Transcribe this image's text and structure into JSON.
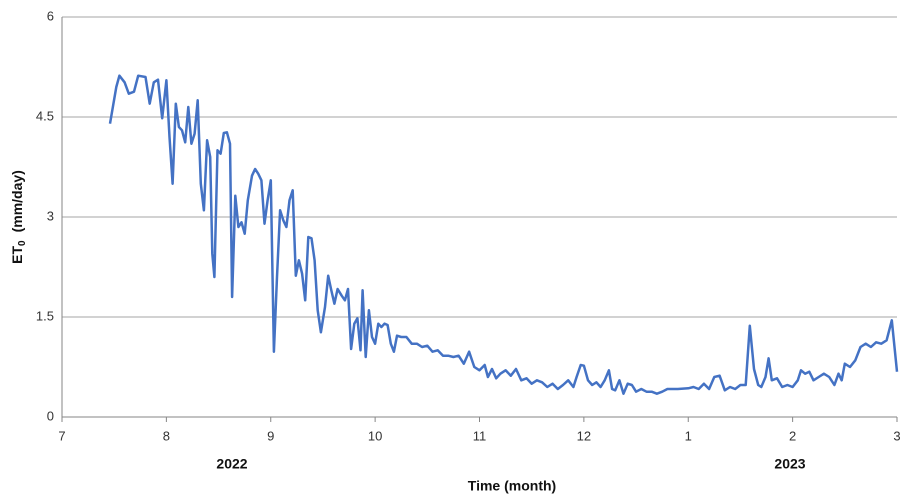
{
  "chart_data": {
    "type": "line",
    "x_label": "Time  (month)",
    "y_label": {
      "main": "ET",
      "subscript": "0",
      "unit": "(mm/day)"
    },
    "group_labels": [
      "2022",
      "2023"
    ],
    "color": "#4472c4",
    "grid": true,
    "xlim": [
      7,
      15
    ],
    "xticks": [
      7,
      8,
      9,
      10,
      11,
      12,
      {
        "value": 13,
        "label": "1"
      },
      {
        "value": 14,
        "label": "2"
      },
      {
        "value": 15,
        "label": "3"
      }
    ],
    "ylim": [
      0,
      6
    ],
    "yticks": [
      0,
      1.5,
      3,
      4.5,
      6
    ],
    "x": [
      7.46,
      7.52,
      7.55,
      7.6,
      7.64,
      7.69,
      7.73,
      7.8,
      7.84,
      7.88,
      7.92,
      7.96,
      8.0,
      8.03,
      8.06,
      8.09,
      8.12,
      8.15,
      8.18,
      8.21,
      8.24,
      8.27,
      8.3,
      8.33,
      8.36,
      8.39,
      8.42,
      8.44,
      8.46,
      8.49,
      8.52,
      8.55,
      8.58,
      8.61,
      8.63,
      8.66,
      8.69,
      8.72,
      8.75,
      8.78,
      8.82,
      8.85,
      8.88,
      8.91,
      8.94,
      8.97,
      9.0,
      9.03,
      9.06,
      9.09,
      9.12,
      9.15,
      9.18,
      9.21,
      9.24,
      9.27,
      9.3,
      9.33,
      9.36,
      9.39,
      9.42,
      9.45,
      9.48,
      9.52,
      9.55,
      9.58,
      9.61,
      9.64,
      9.68,
      9.71,
      9.74,
      9.77,
      9.8,
      9.83,
      9.86,
      9.88,
      9.91,
      9.94,
      9.97,
      10.0,
      10.03,
      10.06,
      10.09,
      10.12,
      10.15,
      10.18,
      10.21,
      10.25,
      10.3,
      10.35,
      10.4,
      10.45,
      10.5,
      10.55,
      10.6,
      10.65,
      10.7,
      10.75,
      10.8,
      10.85,
      10.9,
      10.95,
      11.0,
      11.05,
      11.08,
      11.12,
      11.16,
      11.2,
      11.25,
      11.3,
      11.35,
      11.4,
      11.45,
      11.5,
      11.55,
      11.6,
      11.65,
      11.7,
      11.75,
      11.8,
      11.85,
      11.9,
      11.93,
      11.97,
      12.0,
      12.04,
      12.08,
      12.12,
      12.16,
      12.2,
      12.24,
      12.27,
      12.3,
      12.34,
      12.38,
      12.42,
      12.46,
      12.5,
      12.55,
      12.6,
      12.65,
      12.7,
      12.75,
      12.8,
      12.9,
      13.0,
      13.05,
      13.1,
      13.15,
      13.2,
      13.25,
      13.3,
      13.35,
      13.4,
      13.45,
      13.5,
      13.55,
      13.59,
      13.63,
      13.67,
      13.7,
      13.74,
      13.77,
      13.8,
      13.85,
      13.9,
      13.95,
      14.0,
      14.05,
      14.08,
      14.12,
      14.16,
      14.2,
      14.25,
      14.3,
      14.35,
      14.4,
      14.44,
      14.47,
      14.5,
      14.55,
      14.6,
      14.65,
      14.7,
      14.75,
      14.8,
      14.85,
      14.9,
      14.95,
      15.0
    ],
    "values": [
      4.4,
      4.95,
      5.12,
      5.02,
      4.85,
      4.88,
      5.12,
      5.1,
      4.7,
      5.02,
      5.06,
      4.48,
      5.05,
      4.2,
      3.5,
      4.7,
      4.35,
      4.3,
      4.12,
      4.65,
      4.1,
      4.25,
      4.75,
      3.5,
      3.1,
      4.15,
      3.9,
      2.45,
      2.1,
      4.0,
      3.95,
      4.26,
      4.27,
      4.1,
      1.8,
      3.32,
      2.85,
      2.92,
      2.75,
      3.25,
      3.62,
      3.72,
      3.65,
      3.55,
      2.9,
      3.25,
      3.55,
      0.98,
      2.1,
      3.1,
      2.95,
      2.85,
      3.25,
      3.4,
      2.12,
      2.35,
      2.15,
      1.75,
      2.7,
      2.68,
      2.35,
      1.6,
      1.27,
      1.65,
      2.12,
      1.9,
      1.7,
      1.92,
      1.82,
      1.75,
      1.92,
      1.02,
      1.4,
      1.48,
      1.0,
      1.9,
      0.9,
      1.6,
      1.2,
      1.1,
      1.4,
      1.35,
      1.4,
      1.38,
      1.1,
      0.98,
      1.22,
      1.2,
      1.2,
      1.1,
      1.1,
      1.05,
      1.07,
      0.98,
      1.0,
      0.92,
      0.92,
      0.9,
      0.92,
      0.8,
      0.98,
      0.75,
      0.7,
      0.78,
      0.6,
      0.72,
      0.58,
      0.65,
      0.7,
      0.62,
      0.72,
      0.55,
      0.58,
      0.5,
      0.55,
      0.52,
      0.45,
      0.5,
      0.42,
      0.48,
      0.55,
      0.45,
      0.6,
      0.78,
      0.77,
      0.55,
      0.48,
      0.52,
      0.45,
      0.55,
      0.7,
      0.42,
      0.4,
      0.55,
      0.35,
      0.5,
      0.48,
      0.38,
      0.42,
      0.38,
      0.38,
      0.35,
      0.38,
      0.42,
      0.42,
      0.43,
      0.45,
      0.42,
      0.5,
      0.42,
      0.6,
      0.62,
      0.4,
      0.45,
      0.42,
      0.48,
      0.48,
      1.37,
      0.72,
      0.48,
      0.45,
      0.6,
      0.88,
      0.55,
      0.58,
      0.45,
      0.48,
      0.45,
      0.55,
      0.7,
      0.65,
      0.68,
      0.55,
      0.6,
      0.65,
      0.6,
      0.48,
      0.65,
      0.55,
      0.8,
      0.75,
      0.85,
      1.05,
      1.1,
      1.05,
      1.12,
      1.1,
      1.15,
      1.45,
      0.68
    ]
  }
}
